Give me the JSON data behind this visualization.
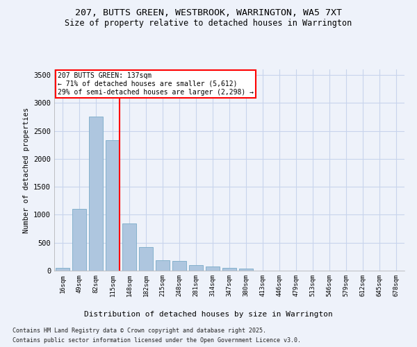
{
  "title_line1": "207, BUTTS GREEN, WESTBROOK, WARRINGTON, WA5 7XT",
  "title_line2": "Size of property relative to detached houses in Warrington",
  "xlabel": "Distribution of detached houses by size in Warrington",
  "ylabel": "Number of detached properties",
  "categories": [
    "16sqm",
    "49sqm",
    "82sqm",
    "115sqm",
    "148sqm",
    "182sqm",
    "215sqm",
    "248sqm",
    "281sqm",
    "314sqm",
    "347sqm",
    "380sqm",
    "413sqm",
    "446sqm",
    "479sqm",
    "513sqm",
    "546sqm",
    "579sqm",
    "612sqm",
    "645sqm",
    "678sqm"
  ],
  "values": [
    50,
    1100,
    2750,
    2330,
    850,
    420,
    185,
    170,
    105,
    80,
    50,
    40,
    0,
    0,
    0,
    0,
    0,
    0,
    0,
    0,
    0
  ],
  "bar_color": "#aec6df",
  "bar_edge_color": "#7aabc8",
  "background_color": "#eef2fa",
  "grid_color": "#d8e0f0",
  "vline_color": "red",
  "vline_pos": 3.43,
  "annotation_title": "207 BUTTS GREEN: 137sqm",
  "annotation_line2": "← 71% of detached houses are smaller (5,612)",
  "annotation_line3": "29% of semi-detached houses are larger (2,298) →",
  "annotation_box_facecolor": "#ffffff",
  "annotation_box_edgecolor": "red",
  "ylim": [
    0,
    3600
  ],
  "yticks": [
    0,
    500,
    1000,
    1500,
    2000,
    2500,
    3000,
    3500
  ],
  "footnote1": "Contains HM Land Registry data © Crown copyright and database right 2025.",
  "footnote2": "Contains public sector information licensed under the Open Government Licence v3.0.",
  "figsize": [
    6.0,
    5.0
  ],
  "dpi": 100
}
